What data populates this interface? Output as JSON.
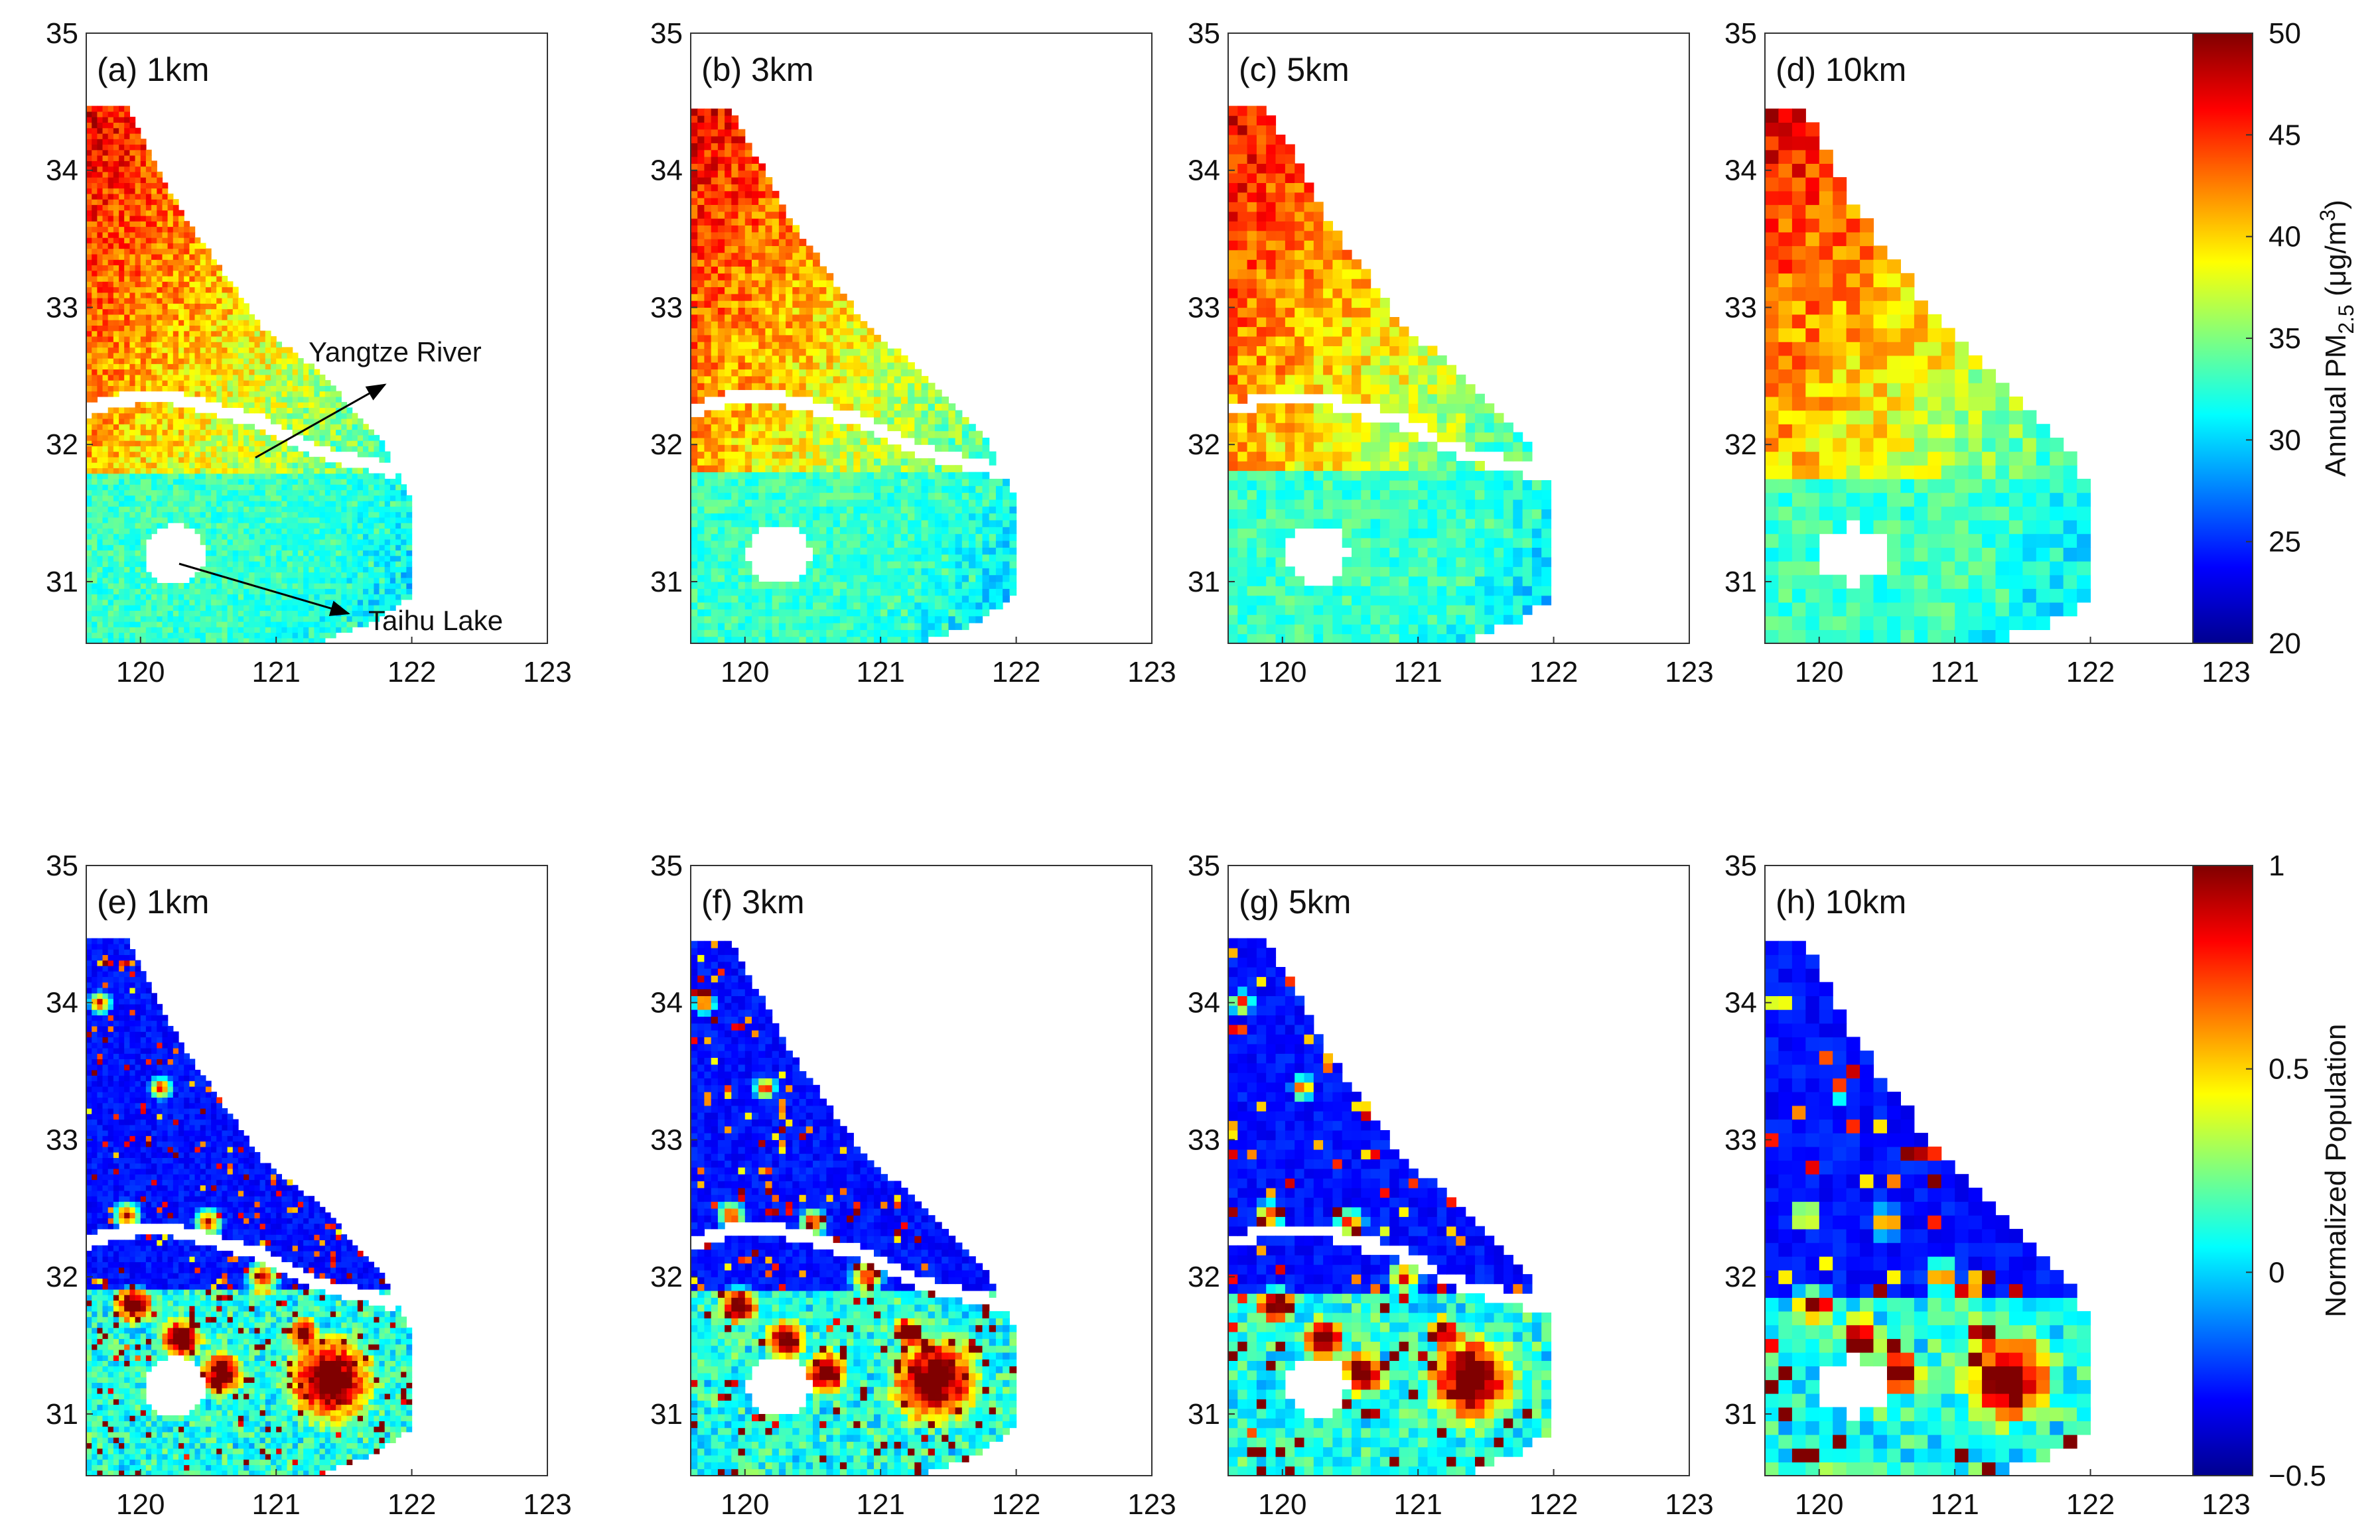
{
  "figure": {
    "title": "",
    "x_ticks": [
      "120",
      "121",
      "122",
      "123"
    ],
    "y_ticks": [
      "35",
      "34",
      "33",
      "32",
      "31"
    ],
    "annotations": {
      "river_label": "Yangtze River",
      "lake_label": "Taihu Lake"
    }
  },
  "chart_data": [
    {
      "type": "heatmap",
      "panel": "(a) 1km",
      "variable": "Annual PM2.5",
      "xlim": [
        119.6,
        123
      ],
      "ylim": [
        30.55,
        35
      ],
      "clim": [
        20,
        50
      ],
      "resolution_km": 1
    },
    {
      "type": "heatmap",
      "panel": "(b) 3km",
      "variable": "Annual PM2.5",
      "xlim": [
        119.6,
        123
      ],
      "ylim": [
        30.55,
        35
      ],
      "clim": [
        20,
        50
      ],
      "resolution_km": 3
    },
    {
      "type": "heatmap",
      "panel": "(c) 5km",
      "variable": "Annual PM2.5",
      "xlim": [
        119.6,
        123
      ],
      "ylim": [
        30.55,
        35
      ],
      "clim": [
        20,
        50
      ],
      "resolution_km": 5
    },
    {
      "type": "heatmap",
      "panel": "(d) 10km",
      "variable": "Annual PM2.5",
      "xlim": [
        119.6,
        123
      ],
      "ylim": [
        30.55,
        35
      ],
      "clim": [
        20,
        50
      ],
      "resolution_km": 10
    },
    {
      "type": "heatmap",
      "panel": "(e) 1km",
      "variable": "Normalized Population",
      "xlim": [
        119.6,
        123
      ],
      "ylim": [
        30.55,
        35
      ],
      "clim": [
        -0.5,
        1
      ],
      "resolution_km": 1
    },
    {
      "type": "heatmap",
      "panel": "(f) 3km",
      "variable": "Normalized Population",
      "xlim": [
        119.6,
        123
      ],
      "ylim": [
        30.55,
        35
      ],
      "clim": [
        -0.5,
        1
      ],
      "resolution_km": 3
    },
    {
      "type": "heatmap",
      "panel": "(g) 5km",
      "variable": "Normalized Population",
      "xlim": [
        119.6,
        123
      ],
      "ylim": [
        30.55,
        35
      ],
      "clim": [
        -0.5,
        1
      ],
      "resolution_km": 5
    },
    {
      "type": "heatmap",
      "panel": "(h) 10km",
      "variable": "Normalized Population",
      "xlim": [
        119.6,
        123
      ],
      "ylim": [
        30.55,
        35
      ],
      "clim": [
        -0.5,
        1
      ],
      "resolution_km": 10
    }
  ],
  "colorbars": {
    "pm": {
      "label_main": "Annual PM",
      "label_sub": "2.5",
      "label_unit": " (μg/m",
      "label_sup": "3",
      "label_close": ")",
      "ticks": [
        "50",
        "45",
        "40",
        "35",
        "30",
        "25",
        "20"
      ],
      "tick_values": [
        50,
        45,
        40,
        35,
        30,
        25,
        20
      ]
    },
    "pop": {
      "label": "Normalized Population",
      "ticks": [
        "1",
        "0.5",
        "0",
        "−0.5"
      ],
      "tick_values": [
        1,
        0.5,
        0,
        -0.5
      ]
    }
  }
}
